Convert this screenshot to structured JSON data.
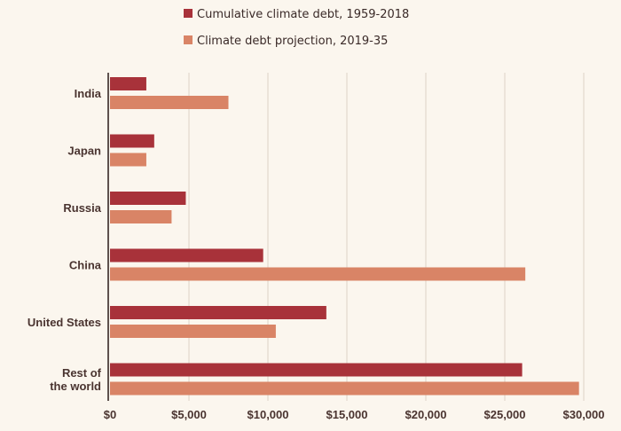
{
  "chart_data": {
    "type": "bar",
    "orientation": "horizontal",
    "categories": [
      "India",
      "Japan",
      "Russia",
      "China",
      "United States",
      "Rest of the world"
    ],
    "category_display_lines": [
      [
        "India"
      ],
      [
        "Japan"
      ],
      [
        "Russia"
      ],
      [
        "China"
      ],
      [
        "United States"
      ],
      [
        "Rest of",
        "the world"
      ]
    ],
    "series": [
      {
        "name": "Cumulative climate debt, 1959-2018",
        "color": "#a8323a",
        "values": [
          2300,
          2800,
          4800,
          9700,
          13700,
          26100
        ]
      },
      {
        "name": "Climate debt projection, 2019-35",
        "color": "#d98466",
        "values": [
          7500,
          2300,
          3900,
          26300,
          10500,
          29700
        ]
      }
    ],
    "x_ticks": [
      0,
      5000,
      10000,
      15000,
      20000,
      25000,
      30000
    ],
    "x_tick_labels": [
      "$0",
      "$5,000",
      "$10,000",
      "$15,000",
      "$20,000",
      "$25,000",
      "$30,000"
    ],
    "xlim": [
      0,
      30000
    ],
    "grid": "vertical",
    "legend_position": "top"
  }
}
